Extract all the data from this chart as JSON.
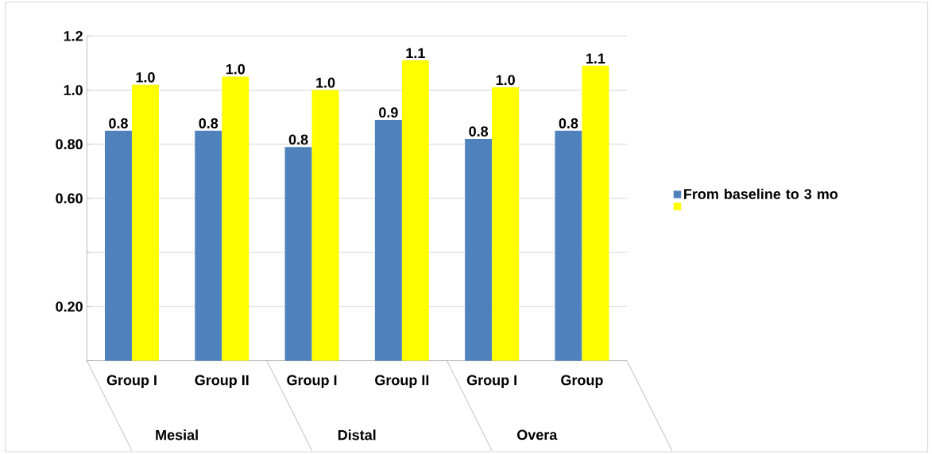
{
  "chart_data": {
    "type": "bar",
    "categories": [
      "Group I",
      "Group II",
      "Group I",
      "Group II",
      "Group I",
      "Group"
    ],
    "series": [
      {
        "name": "From baseline to 3 mo",
        "color": "#4f81bd",
        "values": [
          0.85,
          0.85,
          0.79,
          0.89,
          0.82,
          0.85
        ],
        "value_labels": [
          "0.8",
          "0.8",
          "0.8",
          "0.9",
          "0.8",
          "0.8"
        ]
      },
      {
        "color": "#ffff00",
        "values": [
          1.02,
          1.05,
          1.0,
          1.11,
          1.01,
          1.09
        ],
        "value_labels": [
          "1.0",
          "1.0",
          "1.0",
          "1.1",
          "1.0",
          "1.1"
        ]
      }
    ],
    "ylim": [
      0,
      1.2
    ],
    "yticks": [
      {
        "value": 0,
        "label": null
      },
      {
        "value": 0.2,
        "label": "0.20"
      },
      {
        "value": 0.4,
        "label": null
      },
      {
        "value": 0.6,
        "label": "0.60"
      },
      {
        "value": 0.8,
        "label": "0.80"
      },
      {
        "value": 1.0,
        "label": "1.0"
      },
      {
        "value": 1.2,
        "label": "1.2"
      }
    ],
    "annotations": [
      "Mesial",
      "Distal",
      "Overa"
    ],
    "grid": "y",
    "legend": "right"
  }
}
